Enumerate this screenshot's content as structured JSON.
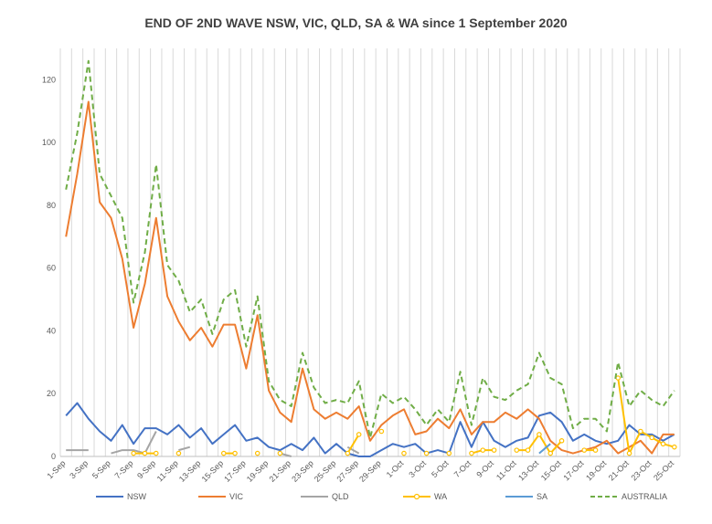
{
  "chart_data": {
    "type": "line",
    "title": "END OF 2ND WAVE NSW, VIC, QLD, SA & WA since 1 September 2020",
    "xlabel": "",
    "ylabel": "",
    "ylim": [
      0,
      130
    ],
    "yticks": [
      0,
      20,
      40,
      60,
      80,
      100,
      120
    ],
    "grid": "vertical",
    "legend": "bottom",
    "categories": [
      "1-Sep",
      "2-Sep",
      "3-Sep",
      "4-Sep",
      "5-Sep",
      "6-Sep",
      "7-Sep",
      "8-Sep",
      "9-Sep",
      "10-Sep",
      "11-Sep",
      "12-Sep",
      "13-Sep",
      "14-Sep",
      "15-Sep",
      "16-Sep",
      "17-Sep",
      "18-Sep",
      "19-Sep",
      "20-Sep",
      "21-Sep",
      "22-Sep",
      "23-Sep",
      "24-Sep",
      "25-Sep",
      "26-Sep",
      "27-Sep",
      "28-Sep",
      "29-Sep",
      "30-Sep",
      "1-Oct",
      "2-Oct",
      "3-Oct",
      "4-Oct",
      "5-Oct",
      "6-Oct",
      "7-Oct",
      "8-Oct",
      "9-Oct",
      "10-Oct",
      "11-Oct",
      "12-Oct",
      "13-Oct",
      "14-Oct",
      "15-Oct",
      "16-Oct",
      "17-Oct",
      "18-Oct",
      "19-Oct",
      "20-Oct",
      "21-Oct",
      "22-Oct",
      "23-Oct",
      "24-Oct",
      "25-Oct"
    ],
    "tick_labels": [
      "1-Sep",
      "3-Sep",
      "5-Sep",
      "7-Sep",
      "9-Sep",
      "11-Sep",
      "13-Sep",
      "15-Sep",
      "17-Sep",
      "19-Sep",
      "21-Sep",
      "23-Sep",
      "25-Sep",
      "27-Sep",
      "29-Sep",
      "1-Oct",
      "3-Oct",
      "5-Oct",
      "7-Oct",
      "9-Oct",
      "11-Oct",
      "13-Oct",
      "15-Oct",
      "17-Oct",
      "19-Oct",
      "21-Oct",
      "23-Oct",
      "25-Oct"
    ],
    "series": [
      {
        "name": "NSW",
        "color": "#4472C4",
        "dash": "solid",
        "marker": "none",
        "values": [
          13,
          17,
          12,
          8,
          5,
          10,
          4,
          9,
          9,
          7,
          10,
          6,
          9,
          4,
          7,
          10,
          5,
          6,
          3,
          2,
          4,
          2,
          6,
          1,
          4,
          1,
          0,
          0,
          2,
          4,
          3,
          4,
          1,
          2,
          1,
          11,
          3,
          11,
          5,
          3,
          5,
          6,
          13,
          14,
          11,
          5,
          7,
          5,
          4,
          5,
          10,
          7,
          7,
          5,
          7
        ]
      },
      {
        "name": "VIC",
        "color": "#ED7D31",
        "dash": "solid",
        "marker": "none",
        "values": [
          70,
          90,
          113,
          81,
          76,
          63,
          41,
          55,
          76,
          51,
          43,
          37,
          41,
          35,
          42,
          42,
          28,
          45,
          21,
          14,
          11,
          28,
          15,
          12,
          14,
          12,
          16,
          5,
          10,
          13,
          15,
          7,
          8,
          12,
          9,
          15,
          7,
          11,
          11,
          14,
          12,
          15,
          12,
          5,
          2,
          1,
          2,
          3,
          5,
          1,
          3,
          5,
          1,
          7,
          7
        ]
      },
      {
        "name": "QLD",
        "color": "#A5A5A5",
        "dash": "solid",
        "marker": "none",
        "values": [
          2,
          2,
          2,
          null,
          1,
          2,
          2,
          1,
          8,
          null,
          2,
          3,
          null,
          null,
          null,
          null,
          null,
          null,
          null,
          1,
          0,
          null,
          null,
          null,
          null,
          3,
          1,
          null,
          null,
          null,
          null,
          null,
          null,
          null,
          null,
          null,
          null,
          null,
          null,
          null,
          null,
          null,
          null,
          null,
          null,
          null,
          null,
          null,
          null,
          null,
          null,
          null,
          null,
          null,
          null
        ]
      },
      {
        "name": "WA",
        "color": "#FFC000",
        "dash": "solid",
        "marker": "circle",
        "values": [
          null,
          null,
          null,
          null,
          null,
          null,
          1,
          1,
          1,
          null,
          1,
          null,
          null,
          null,
          1,
          1,
          null,
          1,
          null,
          1,
          null,
          null,
          null,
          null,
          null,
          1,
          7,
          null,
          8,
          null,
          1,
          null,
          1,
          null,
          1,
          null,
          1,
          2,
          2,
          null,
          2,
          2,
          7,
          1,
          5,
          null,
          2,
          2,
          null,
          25,
          1,
          8,
          6,
          4,
          3
        ]
      },
      {
        "name": "SA",
        "color": "#5B9BD5",
        "dash": "solid",
        "marker": "none",
        "values": [
          null,
          null,
          null,
          null,
          null,
          null,
          null,
          null,
          null,
          null,
          null,
          null,
          null,
          null,
          null,
          null,
          null,
          null,
          null,
          null,
          null,
          null,
          null,
          null,
          null,
          null,
          null,
          null,
          null,
          null,
          null,
          null,
          null,
          null,
          null,
          null,
          null,
          null,
          null,
          null,
          null,
          null,
          1,
          4,
          null,
          null,
          null,
          null,
          null,
          null,
          null,
          null,
          null,
          null,
          null
        ]
      },
      {
        "name": "AUSTRALIA",
        "color": "#70AD47",
        "dash": "dashed",
        "marker": "none",
        "values": [
          85,
          103,
          126,
          90,
          83,
          76,
          49,
          65,
          93,
          61,
          56,
          46,
          50,
          39,
          50,
          53,
          35,
          51,
          24,
          18,
          16,
          33,
          22,
          17,
          18,
          17,
          24,
          6,
          20,
          17,
          19,
          15,
          10,
          15,
          11,
          27,
          10,
          25,
          19,
          18,
          21,
          23,
          33,
          25,
          23,
          9,
          12,
          12,
          8,
          30,
          16,
          21,
          18,
          16,
          21
        ]
      }
    ]
  }
}
